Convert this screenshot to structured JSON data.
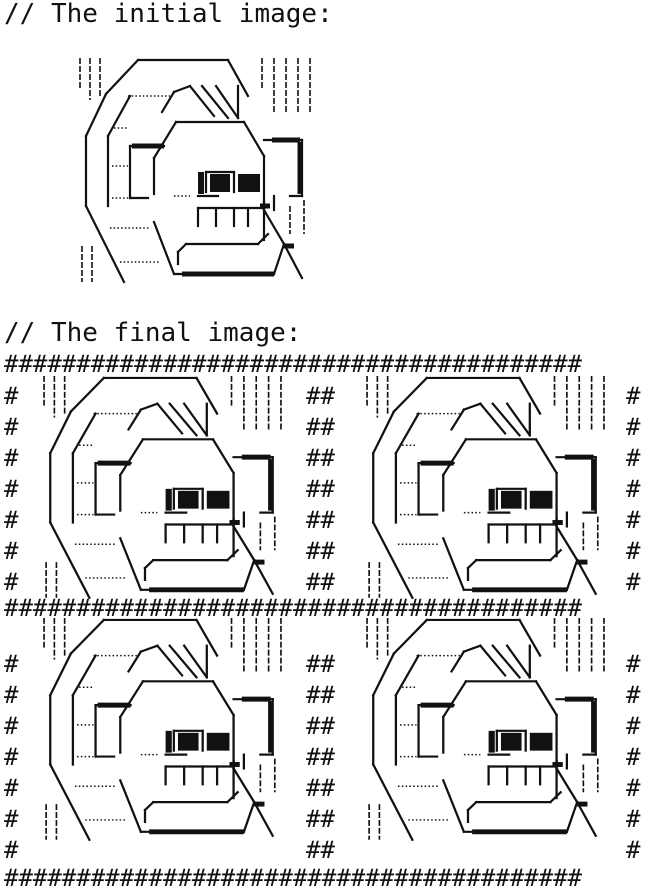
{
  "headings": {
    "initial": "// The initial image:",
    "final": "// The final image:"
  },
  "border_char": "#",
  "colors": {
    "ink": "#111111",
    "background": "#ffffff"
  },
  "art": {
    "description_icon": "ascii-monkey-face-icon",
    "final_grid": {
      "rows": 2,
      "cols": 2
    }
  }
}
